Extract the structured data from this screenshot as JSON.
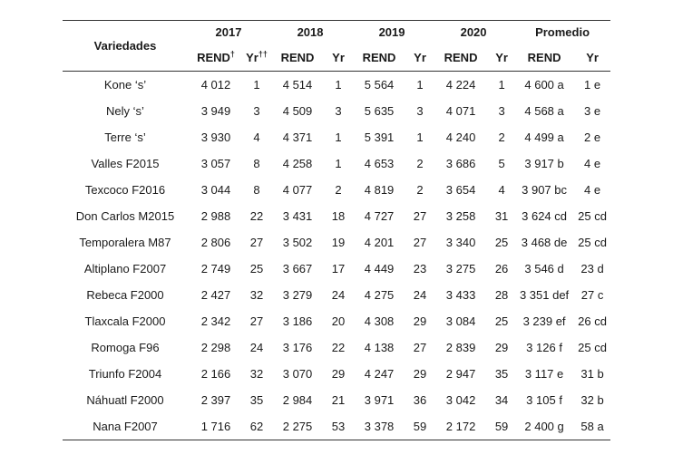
{
  "header": {
    "variedades": "Variedades",
    "years": [
      "2017",
      "2018",
      "2019",
      "2020"
    ],
    "promedio": "Promedio",
    "rend": "REND",
    "yr": "Yr",
    "rend_sup_2017": "†",
    "yr_sup_2017": "††"
  },
  "rows": [
    {
      "variedad": "Kone ‘s’",
      "r2017": "4 012",
      "y2017": "1",
      "r2018": "4 514",
      "y2018": "1",
      "r2019": "5 564",
      "y2019": "1",
      "r2020": "4 224",
      "y2020": "1",
      "prend": "4 600 a",
      "pyr": "1 e"
    },
    {
      "variedad": "Nely ‘s’",
      "r2017": "3 949",
      "y2017": "3",
      "r2018": "4 509",
      "y2018": "3",
      "r2019": "5 635",
      "y2019": "3",
      "r2020": "4 071",
      "y2020": "3",
      "prend": "4 568 a",
      "pyr": "3 e"
    },
    {
      "variedad": "Terre ‘s’",
      "r2017": "3 930",
      "y2017": "4",
      "r2018": "4 371",
      "y2018": "1",
      "r2019": "5 391",
      "y2019": "1",
      "r2020": "4 240",
      "y2020": "2",
      "prend": "4 499 a",
      "pyr": "2 e"
    },
    {
      "variedad": "Valles F2015",
      "r2017": "3 057",
      "y2017": "8",
      "r2018": "4 258",
      "y2018": "1",
      "r2019": "4 653",
      "y2019": "2",
      "r2020": "3 686",
      "y2020": "5",
      "prend": "3 917 b",
      "pyr": "4 e"
    },
    {
      "variedad": "Texcoco F2016",
      "r2017": "3 044",
      "y2017": "8",
      "r2018": "4 077",
      "y2018": "2",
      "r2019": "4 819",
      "y2019": "2",
      "r2020": "3 654",
      "y2020": "4",
      "prend": "3 907 bc",
      "pyr": "4 e"
    },
    {
      "variedad": "Don Carlos M2015",
      "r2017": "2 988",
      "y2017": "22",
      "r2018": "3 431",
      "y2018": "18",
      "r2019": "4 727",
      "y2019": "27",
      "r2020": "3 258",
      "y2020": "31",
      "prend": "3 624 cd",
      "pyr": "25 cd"
    },
    {
      "variedad": "Temporalera M87",
      "r2017": "2 806",
      "y2017": "27",
      "r2018": "3 502",
      "y2018": "19",
      "r2019": "4 201",
      "y2019": "27",
      "r2020": "3 340",
      "y2020": "25",
      "prend": "3 468 de",
      "pyr": "25 cd"
    },
    {
      "variedad": "Altiplano F2007",
      "r2017": "2 749",
      "y2017": "25",
      "r2018": "3 667",
      "y2018": "17",
      "r2019": "4 449",
      "y2019": "23",
      "r2020": "3 275",
      "y2020": "26",
      "prend": "3 546 d",
      "pyr": "23 d"
    },
    {
      "variedad": "Rebeca F2000",
      "r2017": "2 427",
      "y2017": "32",
      "r2018": "3 279",
      "y2018": "24",
      "r2019": "4 275",
      "y2019": "24",
      "r2020": "3 433",
      "y2020": "28",
      "prend": "3 351 def",
      "pyr": "27 c"
    },
    {
      "variedad": "Tlaxcala F2000",
      "r2017": "2 342",
      "y2017": "27",
      "r2018": "3 186",
      "y2018": "20",
      "r2019": "4 308",
      "y2019": "29",
      "r2020": "3 084",
      "y2020": "25",
      "prend": "3 239 ef",
      "pyr": "26 cd"
    },
    {
      "variedad": "Romoga F96",
      "r2017": "2 298",
      "y2017": "24",
      "r2018": "3 176",
      "y2018": "22",
      "r2019": "4 138",
      "y2019": "27",
      "r2020": "2 839",
      "y2020": "29",
      "prend": "3 126 f",
      "pyr": "25 cd"
    },
    {
      "variedad": "Triunfo F2004",
      "r2017": "2 166",
      "y2017": "32",
      "r2018": "3 070",
      "y2018": "29",
      "r2019": "4 247",
      "y2019": "29",
      "r2020": "2 947",
      "y2020": "35",
      "prend": "3 117 e",
      "pyr": "31 b"
    },
    {
      "variedad": "Náhuatl F2000",
      "r2017": "2 397",
      "y2017": "35",
      "r2018": "2 984",
      "y2018": "21",
      "r2019": "3 971",
      "y2019": "36",
      "r2020": "3 042",
      "y2020": "34",
      "prend": "3 105 f",
      "pyr": "32 b"
    },
    {
      "variedad": "Nana F2007",
      "r2017": "1 716",
      "y2017": "62",
      "r2018": "2 275",
      "y2018": "53",
      "r2019": "3 378",
      "y2019": "59",
      "r2020": "2 172",
      "y2020": "59",
      "prend": "2 400 g",
      "pyr": "58 a"
    }
  ]
}
